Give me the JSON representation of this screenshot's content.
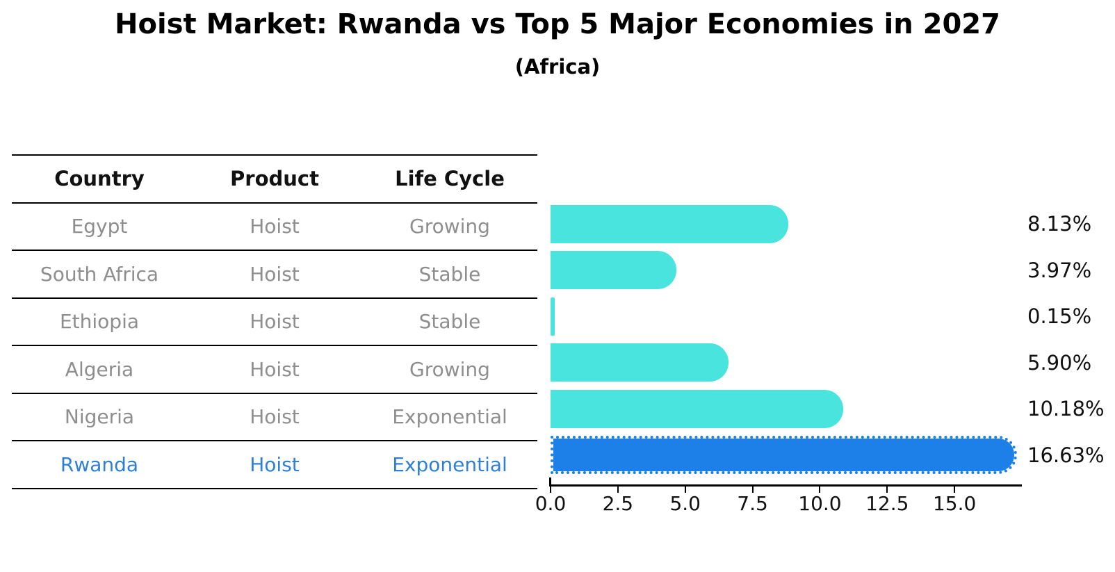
{
  "title": "Hoist Market: Rwanda vs Top 5 Major Economies in 2027",
  "subtitle": "(Africa)",
  "table": {
    "headers": [
      "Country",
      "Product",
      "Life Cycle"
    ],
    "rows": [
      {
        "country": "Egypt",
        "product": "Hoist",
        "life_cycle": "Growing",
        "highlight": false
      },
      {
        "country": "South Africa",
        "product": "Hoist",
        "life_cycle": "Stable",
        "highlight": false
      },
      {
        "country": "Ethiopia",
        "product": "Hoist",
        "life_cycle": "Stable",
        "highlight": false
      },
      {
        "country": "Algeria",
        "product": "Hoist",
        "life_cycle": "Growing",
        "highlight": false
      },
      {
        "country": "Nigeria",
        "product": "Hoist",
        "life_cycle": "Exponential",
        "highlight": false
      },
      {
        "country": "Rwanda",
        "product": "Hoist",
        "life_cycle": "Exponential",
        "highlight": true
      }
    ]
  },
  "chart_data": {
    "type": "bar",
    "orientation": "horizontal",
    "title": "Hoist Market: Rwanda vs Top 5 Major Economies in 2027",
    "subtitle": "(Africa)",
    "categories": [
      "Egypt",
      "South Africa",
      "Ethiopia",
      "Algeria",
      "Nigeria",
      "Rwanda"
    ],
    "values": [
      8.13,
      3.97,
      0.15,
      5.9,
      10.18,
      16.63
    ],
    "value_labels": [
      "8.13%",
      "3.97%",
      "0.15%",
      "5.90%",
      "10.18%",
      "16.63%"
    ],
    "x_ticks": [
      0,
      2.5,
      5,
      7.5,
      10,
      12.5,
      15
    ],
    "xlim": [
      0,
      17.5
    ],
    "grid": false,
    "legend": "none",
    "bar_color": "#4ae4df",
    "highlight_color": "#1d7fe8",
    "highlight_index": 5,
    "highlight_text_color": "#2e7fd6"
  }
}
